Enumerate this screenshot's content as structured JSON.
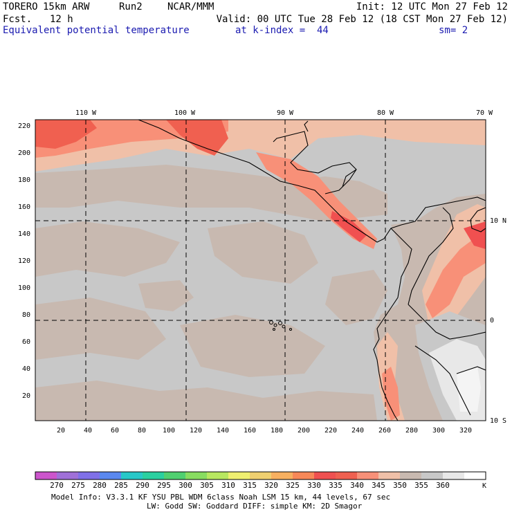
{
  "header": {
    "model_name": "TORERO",
    "resolution": "15km ARW",
    "run": "Run2",
    "org": "NCAR/MMM",
    "init": "Init: 12 UTC Mon 27 Feb 12",
    "fcst_label": "Fcst.",
    "fcst_value": "12 h",
    "valid": "Valid: 00 UTC Tue 28 Feb 12 (18 CST Mon 27 Feb 12)",
    "field": "Equivalent potential temperature",
    "level": "at k-index =  44",
    "smooth": "sm= 2"
  },
  "map": {
    "lon_labels": [
      "110 W",
      "100 W",
      "90 W",
      "80 W",
      "70 W"
    ],
    "lat_labels": [
      "10 N",
      "0",
      "10 S"
    ],
    "y_ticks": [
      "20",
      "40",
      "60",
      "80",
      "100",
      "120",
      "140",
      "160",
      "180",
      "200",
      "220"
    ],
    "x_ticks": [
      "20",
      "40",
      "60",
      "80",
      "100",
      "120",
      "140",
      "160",
      "180",
      "200",
      "220",
      "240",
      "260",
      "280",
      "300",
      "320"
    ],
    "ocean_color": "#c8c8c8",
    "land_color": "#c8b9b0"
  },
  "colorbar": {
    "labels": [
      "270",
      "275",
      "280",
      "285",
      "290",
      "295",
      "300",
      "305",
      "310",
      "315",
      "320",
      "325",
      "330",
      "335",
      "340",
      "345",
      "350",
      "355",
      "360"
    ],
    "unit": "K",
    "colors": [
      "#cc55cc",
      "#a070d8",
      "#8070e8",
      "#5a88f0",
      "#28c8c8",
      "#2ad0a0",
      "#50d070",
      "#88dd60",
      "#b8e860",
      "#f0f070",
      "#f0d070",
      "#f8b060",
      "#f88858",
      "#f05050",
      "#f06050",
      "#f89078",
      "#f0c0a8",
      "#c8b9b0",
      "#c8c8c8",
      "#e8e8e8",
      "#ffffff"
    ]
  },
  "footer": {
    "line1": "Model Info: V3.3.1   KF     YSU PBL  WDM 6class  Noah LSM  15 km,   44 levels,   67 sec",
    "line2": "LW: Godd SW: Goddard DIFF: simple KM: 2D Smagor"
  }
}
